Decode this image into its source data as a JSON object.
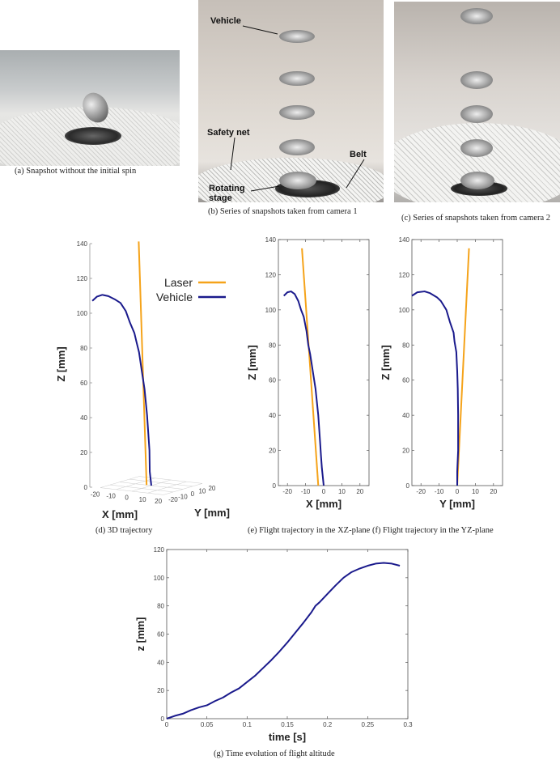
{
  "photos": {
    "a": {
      "caption": "(a) Snapshot without the initial spin"
    },
    "b": {
      "caption": "(b) Series of snapshots taken from camera 1",
      "annotations": {
        "vehicle": "Vehicle",
        "safety_net": "Safety net",
        "rotating_stage": "Rotating stage",
        "belt": "Belt"
      }
    },
    "c": {
      "caption": "(c) Series of snapshots taken from camera 2"
    }
  },
  "colors": {
    "laser": "#f5a31a",
    "vehicle": "#1a1a8c"
  },
  "captions": {
    "d": "(d) 3D trajectory",
    "ef": "(e) Flight trajectory in the XZ-plane (f) Flight trajectory in the YZ-plane",
    "g": "(g) Time evolution of flight altitude"
  },
  "chart_data": [
    {
      "id": "d",
      "type": "line3d",
      "xlabel": "X [mm]",
      "ylabel": "Y [mm]",
      "zlabel": "Z [mm]",
      "xlim": [
        -20,
        20
      ],
      "ylim": [
        -20,
        20
      ],
      "zlim": [
        0,
        140
      ],
      "xticks": [
        -20,
        -10,
        0,
        10,
        20
      ],
      "yticks": [
        -20,
        -10,
        0,
        10,
        20
      ],
      "zticks": [
        0,
        20,
        40,
        60,
        80,
        100,
        120,
        140
      ],
      "legend": {
        "placement": "top-right",
        "entries": [
          "Laser",
          "Vehicle"
        ]
      },
      "series": [
        {
          "name": "Laser",
          "points": [
            [
              -3,
              0,
              0
            ],
            [
              -12,
              6.5,
              138
            ]
          ]
        },
        {
          "name": "Vehicle",
          "points": [
            [
              0,
              0,
              0
            ],
            [
              -1,
              0,
              8
            ],
            [
              -1.5,
              0.5,
              20
            ],
            [
              -3,
              0.5,
              40
            ],
            [
              -4.5,
              0.3,
              55
            ],
            [
              -6,
              0,
              65
            ],
            [
              -7.5,
              -0.5,
              76
            ],
            [
              -8.5,
              -1.5,
              82
            ],
            [
              -9.5,
              -2,
              87
            ],
            [
              -11,
              -4,
              93
            ],
            [
              -12.5,
              -6,
              100
            ],
            [
              -14,
              -9,
              105
            ],
            [
              -16,
              -11,
              107
            ],
            [
              -18,
              -15,
              109.5
            ],
            [
              -20,
              -18,
              110.5
            ],
            [
              -21,
              -22,
              110
            ],
            [
              -22,
              -25,
              108
            ]
          ]
        }
      ]
    },
    {
      "id": "e",
      "type": "line",
      "xlabel": "X [mm]",
      "ylabel": "Z [mm]",
      "xlim": [
        -25,
        25
      ],
      "ylim": [
        0,
        140
      ],
      "xticks": [
        -20,
        -10,
        0,
        10,
        20
      ],
      "yticks": [
        0,
        20,
        40,
        60,
        80,
        100,
        120,
        140
      ],
      "series": [
        {
          "name": "Laser",
          "points": [
            [
              -3,
              0
            ],
            [
              -12,
              135
            ]
          ]
        },
        {
          "name": "Vehicle",
          "points": [
            [
              0,
              0
            ],
            [
              -0.5,
              5
            ],
            [
              -1,
              10
            ],
            [
              -1.5,
              17
            ],
            [
              -2,
              25
            ],
            [
              -3,
              40
            ],
            [
              -4.5,
              55
            ],
            [
              -6,
              65
            ],
            [
              -7.5,
              75
            ],
            [
              -8.5,
              80
            ],
            [
              -9.5,
              88
            ],
            [
              -11,
              96
            ],
            [
              -12.5,
              100
            ],
            [
              -14,
              105
            ],
            [
              -16,
              109
            ],
            [
              -18,
              110.5
            ],
            [
              -20,
              110
            ],
            [
              -22,
              108
            ]
          ]
        }
      ]
    },
    {
      "id": "f",
      "type": "line",
      "xlabel": "Y [mm]",
      "ylabel": "Z [mm]",
      "xlim": [
        -25,
        25
      ],
      "ylim": [
        0,
        140
      ],
      "xticks": [
        -20,
        -10,
        0,
        10,
        20
      ],
      "yticks": [
        0,
        20,
        40,
        60,
        80,
        100,
        120,
        140
      ],
      "series": [
        {
          "name": "Laser",
          "points": [
            [
              0,
              0
            ],
            [
              6.5,
              135
            ]
          ]
        },
        {
          "name": "Vehicle",
          "points": [
            [
              0,
              0
            ],
            [
              0,
              8
            ],
            [
              0.5,
              20
            ],
            [
              0.5,
              30
            ],
            [
              0.5,
              40
            ],
            [
              0.3,
              55
            ],
            [
              0,
              65
            ],
            [
              -0.5,
              76
            ],
            [
              -1.5,
              82
            ],
            [
              -2,
              87
            ],
            [
              -4,
              93
            ],
            [
              -6,
              100
            ],
            [
              -9,
              105
            ],
            [
              -11,
              107
            ],
            [
              -15,
              109.5
            ],
            [
              -18,
              110.5
            ],
            [
              -22,
              110
            ],
            [
              -25,
              108
            ]
          ]
        }
      ]
    },
    {
      "id": "g",
      "type": "line",
      "xlabel": "time [s]",
      "ylabel": "z [mm]",
      "xlim": [
        0,
        0.3
      ],
      "ylim": [
        0,
        120
      ],
      "xticks": [
        0,
        0.05,
        0.1,
        0.15,
        0.2,
        0.25,
        0.3
      ],
      "yticks": [
        0,
        20,
        40,
        60,
        80,
        100,
        120
      ],
      "series": [
        {
          "name": "Vehicle",
          "points": [
            [
              0,
              0
            ],
            [
              0.01,
              2
            ],
            [
              0.02,
              3.5
            ],
            [
              0.03,
              6
            ],
            [
              0.04,
              8
            ],
            [
              0.05,
              9.5
            ],
            [
              0.06,
              12.5
            ],
            [
              0.07,
              15
            ],
            [
              0.08,
              18.5
            ],
            [
              0.09,
              21.5
            ],
            [
              0.1,
              26
            ],
            [
              0.11,
              30.5
            ],
            [
              0.12,
              36
            ],
            [
              0.13,
              41.5
            ],
            [
              0.14,
              47.5
            ],
            [
              0.15,
              54
            ],
            [
              0.16,
              61
            ],
            [
              0.17,
              68
            ],
            [
              0.18,
              75.5
            ],
            [
              0.185,
              80
            ],
            [
              0.19,
              82.5
            ],
            [
              0.2,
              88.5
            ],
            [
              0.21,
              94.5
            ],
            [
              0.22,
              100
            ],
            [
              0.23,
              104
            ],
            [
              0.24,
              106.5
            ],
            [
              0.25,
              108.5
            ],
            [
              0.26,
              110
            ],
            [
              0.27,
              110.5
            ],
            [
              0.28,
              110
            ],
            [
              0.29,
              108.5
            ]
          ]
        }
      ]
    }
  ]
}
